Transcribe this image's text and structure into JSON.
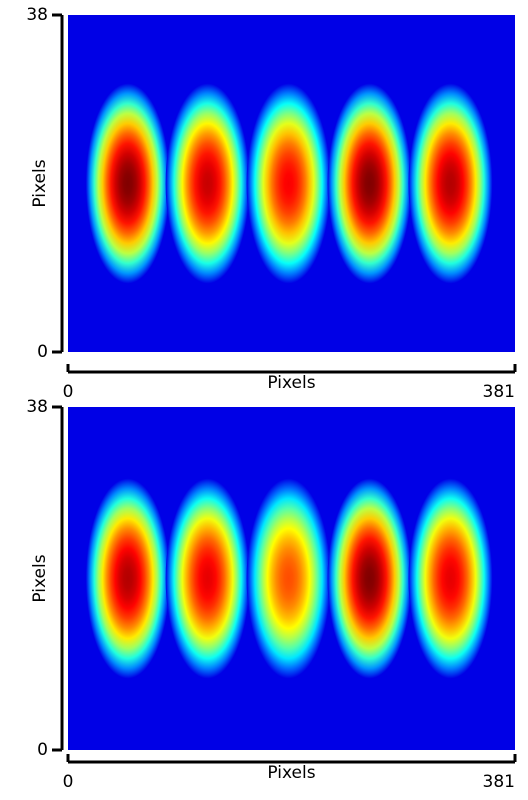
{
  "chart_data": [
    {
      "type": "heatmap",
      "colormap": "jet",
      "xlabel": "Pixels",
      "ylabel": "Pixels",
      "xlim": [
        0,
        381
      ],
      "ylim": [
        0,
        38
      ],
      "xticks": [
        0,
        381
      ],
      "yticks": [
        0,
        38
      ],
      "x": [
        51,
        119,
        188,
        257,
        326
      ],
      "y": [
        19,
        19,
        19,
        19,
        19
      ],
      "values": [
        1,
        0.93,
        0.88,
        1,
        0.95
      ]
    },
    {
      "type": "heatmap",
      "colormap": "jet",
      "xlabel": "Pixels",
      "ylabel": "Pixels",
      "xlim": [
        0,
        381
      ],
      "ylim": [
        0,
        38
      ],
      "xticks": [
        0,
        381
      ],
      "yticks": [
        0,
        38
      ],
      "x": [
        51,
        119,
        188,
        257,
        326
      ],
      "y": [
        19,
        19,
        19,
        19,
        19
      ],
      "values": [
        0.95,
        0.9,
        0.8,
        1,
        0.9
      ]
    }
  ]
}
